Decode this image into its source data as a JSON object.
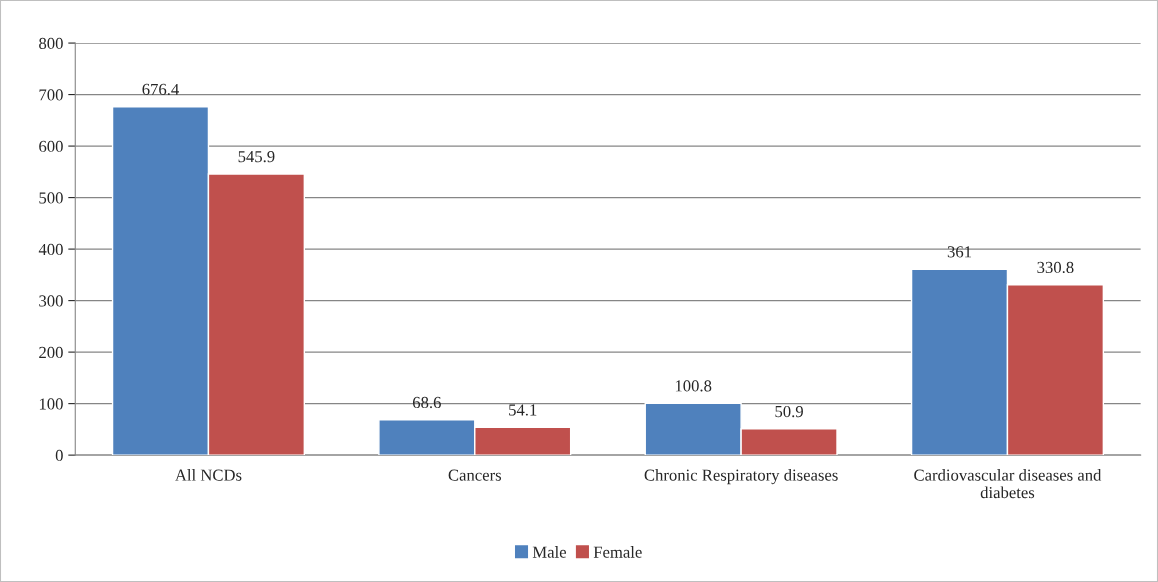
{
  "chart_data": {
    "type": "bar",
    "categories": [
      "All NCDs",
      "Cancers",
      "Chronic Respiratory diseases",
      "Cardiovascular diseases and diabetes"
    ],
    "series": [
      {
        "name": "Male",
        "color": "#4f81bd",
        "values": [
          676.4,
          68.6,
          100.8,
          361
        ]
      },
      {
        "name": "Female",
        "color": "#c0504d",
        "values": [
          545.9,
          54.1,
          50.9,
          330.8
        ]
      }
    ],
    "ylim": [
      0,
      800
    ],
    "yticks": [
      0,
      100,
      200,
      300,
      400,
      500,
      600,
      700,
      800
    ],
    "grid": "y",
    "legend": "bottom",
    "data_labels": true
  }
}
